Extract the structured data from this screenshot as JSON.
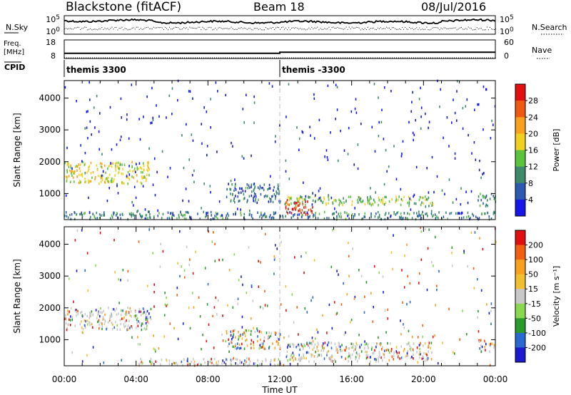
{
  "header": {
    "station": "Blackstone (fitACF)",
    "beam": "Beam 18",
    "date": "08/Jul/2016"
  },
  "chart_data": [
    {
      "type": "line",
      "panel": "noise",
      "left_label": "N.Sky",
      "right_label": "N.Search",
      "left_ticks": [
        "10^5",
        "10^0"
      ],
      "right_ticks": [
        "10^5",
        "10^0"
      ],
      "series": [
        {
          "name": "N.Sky",
          "style": "solid"
        },
        {
          "name": "N.Search",
          "style": "dotted"
        }
      ]
    },
    {
      "type": "line",
      "panel": "frequency",
      "left_label": "Freq.",
      "left_unit": "[MHz]",
      "left_ticks": [
        "18",
        "8"
      ],
      "ylim_left": [
        8,
        18
      ],
      "right_label": "Nave",
      "right_ticks": [
        "60",
        "0"
      ],
      "ylim_right": [
        0,
        60
      ],
      "series": [
        {
          "name": "Freq.",
          "style": "solid",
          "x_hours": [
            0,
            12,
            12,
            24
          ],
          "values": [
            10.8,
            10.8,
            11.4,
            11.4
          ]
        },
        {
          "name": "Nave",
          "style": "dotted"
        }
      ]
    },
    {
      "type": "table",
      "panel": "cpid",
      "label": "CPID",
      "segments": [
        {
          "start_hour": 0,
          "end_hour": 12,
          "text": "themis 3300"
        },
        {
          "start_hour": 12,
          "end_hour": 24,
          "text": "themis -3300"
        }
      ]
    },
    {
      "type": "heatmap",
      "panel": "power",
      "ylabel": "Slant Range [km]",
      "yticks": [
        "1000",
        "2000",
        "3000",
        "4000"
      ],
      "ylim": [
        180,
        4550
      ],
      "xlim_hours": [
        0,
        24
      ],
      "colorbar_label": "Power [dB]",
      "colorbar_ticks": [
        "4",
        "8",
        "12",
        "16",
        "20",
        "24",
        "28"
      ],
      "colorbar_colors": [
        "#1616e6",
        "#2d59b0",
        "#3e8a6a",
        "#5cc43c",
        "#f0d020",
        "#f8a020",
        "#f05a10",
        "#e01010"
      ],
      "features": [
        {
          "x_hours": [
            0.0,
            4.8
          ],
          "range_km": [
            1300,
            2000
          ],
          "level": 0.55
        },
        {
          "x_hours": [
            0.0,
            24.0
          ],
          "range_km": [
            180,
            420
          ],
          "level": 0.25
        },
        {
          "x_hours": [
            9.0,
            12.0
          ],
          "range_km": [
            700,
            1300
          ],
          "level": 0.2
        },
        {
          "x_hours": [
            12.3,
            20.5
          ],
          "range_km": [
            600,
            900
          ],
          "level": 0.4
        },
        {
          "x_hours": [
            12.3,
            13.8
          ],
          "range_km": [
            300,
            800
          ],
          "level": 0.95
        },
        {
          "x_hours": [
            23.0,
            24.0
          ],
          "range_km": [
            600,
            1000
          ],
          "level": 0.25
        }
      ]
    },
    {
      "type": "heatmap",
      "panel": "velocity",
      "ylabel": "Slant Range [km]",
      "yticks": [
        "1000",
        "2000",
        "3000",
        "4000"
      ],
      "ylim": [
        180,
        4550
      ],
      "xlabel": "Time UT",
      "xticks": [
        "00:00",
        "04:00",
        "08:00",
        "12:00",
        "16:00",
        "20:00",
        "00:00"
      ],
      "xlim_hours": [
        0,
        24
      ],
      "colorbar_label": "Velocity [m s⁻¹]",
      "colorbar_ticks": [
        "200",
        "100",
        "50",
        "15",
        "-15",
        "-50",
        "-100",
        "-200"
      ],
      "colorbar_colors": [
        "#1a1ad0",
        "#2a6ad0",
        "#2a9a2a",
        "#8ad850",
        "#c8c8c8",
        "#f0c030",
        "#f8a020",
        "#f06010",
        "#e01010"
      ],
      "features": [
        {
          "x_hours": [
            0.0,
            4.8
          ],
          "range_km": [
            1300,
            2000
          ],
          "level": 0.5
        },
        {
          "x_hours": [
            4.0,
            12.0
          ],
          "range_km": [
            180,
            400
          ],
          "level": 0.6
        },
        {
          "x_hours": [
            9.0,
            12.0
          ],
          "range_km": [
            700,
            1300
          ],
          "level": 0.15
        },
        {
          "x_hours": [
            12.3,
            20.5
          ],
          "range_km": [
            300,
            900
          ],
          "level": 0.5
        },
        {
          "x_hours": [
            23.0,
            24.0
          ],
          "range_km": [
            600,
            1000
          ],
          "level": 0.5
        }
      ]
    }
  ]
}
